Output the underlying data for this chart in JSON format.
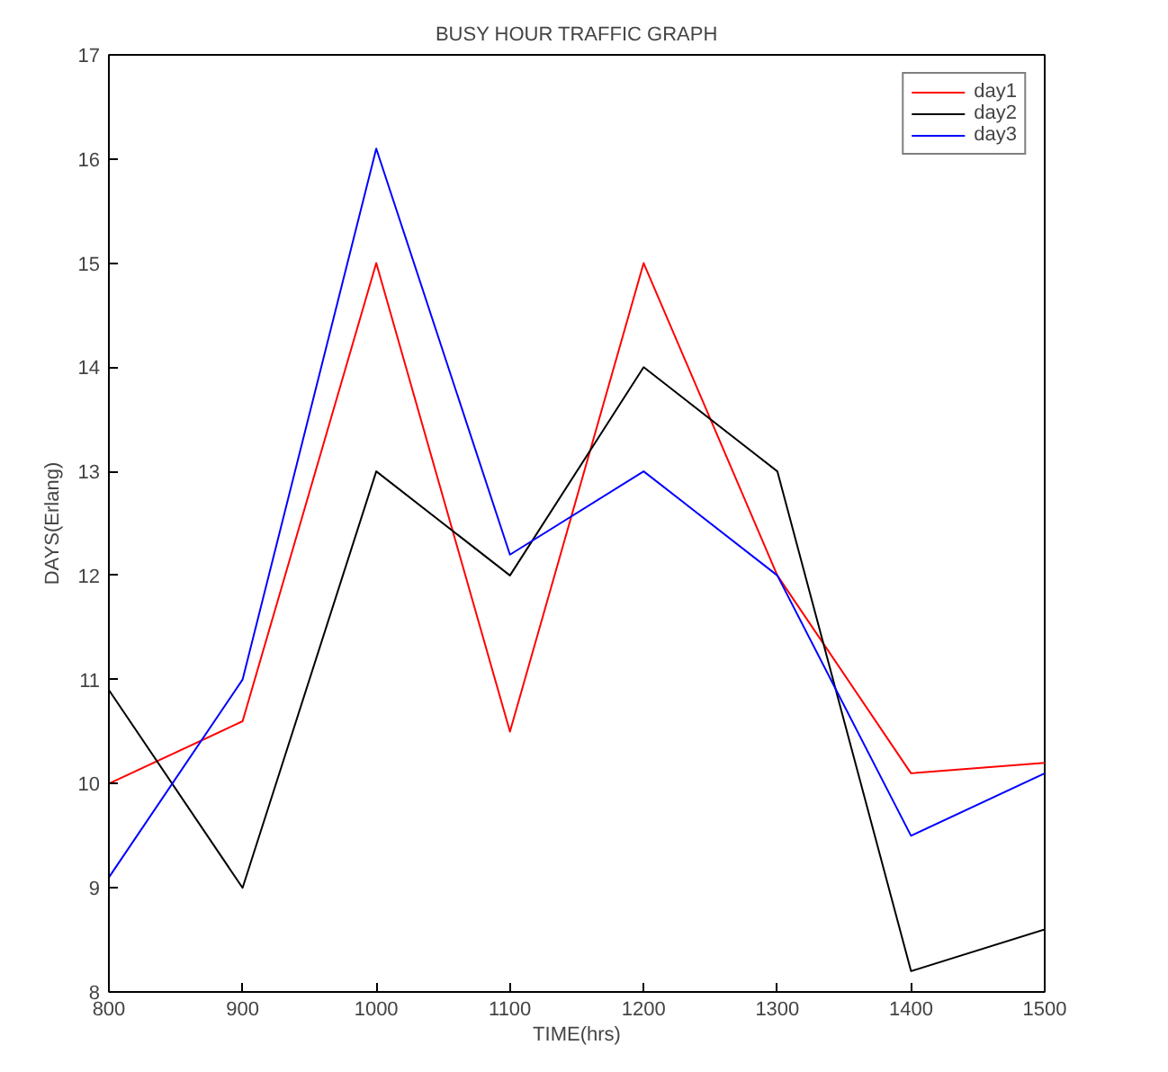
{
  "chart_data": {
    "type": "line",
    "title": "BUSY HOUR TRAFFIC GRAPH",
    "xlabel": "TIME(hrs)",
    "ylabel": "DAYS(Erlang)",
    "x": [
      800,
      900,
      1000,
      1100,
      1200,
      1300,
      1400,
      1500
    ],
    "xlim": [
      800,
      1500
    ],
    "xticks": [
      800,
      900,
      1000,
      1100,
      1200,
      1300,
      1400,
      1500
    ],
    "ylim": [
      8,
      17
    ],
    "yticks": [
      8,
      9,
      10,
      11,
      12,
      13,
      14,
      15,
      16,
      17
    ],
    "grid": false,
    "legend": "top right",
    "marker": "none",
    "line_style": "solid",
    "series": [
      {
        "name": "day1",
        "color": "#ff0000",
        "values": [
          10.0,
          10.6,
          15.0,
          10.5,
          15.0,
          12.0,
          10.1,
          10.2
        ]
      },
      {
        "name": "day2",
        "color": "#000000",
        "values": [
          10.9,
          9.0,
          13.0,
          12.0,
          14.0,
          13.0,
          8.2,
          8.6
        ]
      },
      {
        "name": "day3",
        "color": "#0000ff",
        "values": [
          9.1,
          11.0,
          16.1,
          12.2,
          13.0,
          12.0,
          9.5,
          10.1
        ]
      }
    ]
  }
}
